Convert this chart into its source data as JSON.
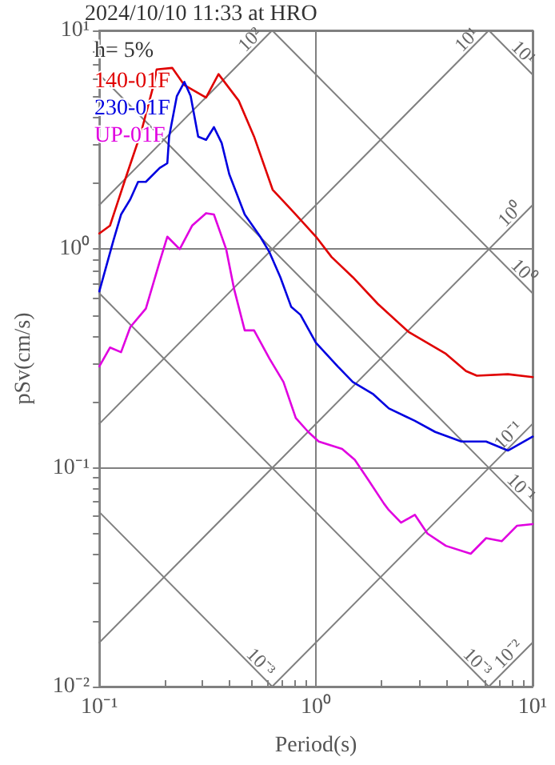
{
  "chart_data": {
    "type": "line",
    "title": "2024/10/10 11:33 at HRO",
    "xlabel": "Period(s)",
    "ylabel": "pSv(cm/s)",
    "log": "xy",
    "grid": true,
    "legend": "top left",
    "xlim": [
      0.1,
      10
    ],
    "ylim": [
      0.01,
      10
    ],
    "xticks": [
      {
        "value": 0.1,
        "label": "10⁻¹"
      },
      {
        "value": 0.2,
        "label": null
      },
      {
        "value": 0.3,
        "label": null
      },
      {
        "value": 0.4,
        "label": null
      },
      {
        "value": 0.5,
        "label": null
      },
      {
        "value": 0.6,
        "label": null
      },
      {
        "value": 0.7,
        "label": null
      },
      {
        "value": 0.8,
        "label": null
      },
      {
        "value": 0.9,
        "label": null
      },
      {
        "value": 1,
        "label": "10⁰"
      },
      {
        "value": 2,
        "label": null
      },
      {
        "value": 3,
        "label": null
      },
      {
        "value": 4,
        "label": null
      },
      {
        "value": 5,
        "label": null
      },
      {
        "value": 6,
        "label": null
      },
      {
        "value": 7,
        "label": null
      },
      {
        "value": 8,
        "label": null
      },
      {
        "value": 9,
        "label": null
      },
      {
        "value": 10,
        "label": "10¹"
      }
    ],
    "yticks": [
      {
        "value": 0.01,
        "label": "10⁻²"
      },
      {
        "value": 0.02,
        "label": null
      },
      {
        "value": 0.03,
        "label": null
      },
      {
        "value": 0.04,
        "label": null
      },
      {
        "value": 0.05,
        "label": null
      },
      {
        "value": 0.06,
        "label": null
      },
      {
        "value": 0.07,
        "label": null
      },
      {
        "value": 0.08,
        "label": null
      },
      {
        "value": 0.09,
        "label": null
      },
      {
        "value": 0.1,
        "label": "10⁻¹"
      },
      {
        "value": 0.2,
        "label": null
      },
      {
        "value": 0.3,
        "label": null
      },
      {
        "value": 0.4,
        "label": null
      },
      {
        "value": 0.5,
        "label": null
      },
      {
        "value": 0.6,
        "label": null
      },
      {
        "value": 0.7,
        "label": null
      },
      {
        "value": 0.8,
        "label": null
      },
      {
        "value": 0.9,
        "label": null
      },
      {
        "value": 1,
        "label": "10⁰"
      },
      {
        "value": 2,
        "label": null
      },
      {
        "value": 3,
        "label": null
      },
      {
        "value": 4,
        "label": null
      },
      {
        "value": 5,
        "label": null
      },
      {
        "value": 6,
        "label": null
      },
      {
        "value": 7,
        "label": null
      },
      {
        "value": 8,
        "label": null
      },
      {
        "value": 9,
        "label": null
      },
      {
        "value": 10,
        "label": "10¹"
      }
    ],
    "annotations": [
      "h= 5%",
      {
        "text": "10²",
        "x": 0.628,
        "y": 10
      },
      {
        "text": "10¹",
        "x": 6.28,
        "y": 10
      },
      {
        "text": "10⁰",
        "x": 10,
        "y": 1.59
      },
      {
        "text": "10⁻¹",
        "x": 10,
        "y": 0.159
      },
      {
        "text": "10⁻²",
        "x": 10,
        "y": 0.0159
      },
      {
        "text": "10¹",
        "x": 10,
        "y": 6.28
      },
      {
        "text": "10⁰",
        "x": 10,
        "y": 0.628
      },
      {
        "text": "10⁻¹",
        "x": 10,
        "y": 0.0628
      },
      {
        "text": "10⁻³",
        "x": 6.28,
        "y": 0.01
      },
      {
        "text": "10⁻³",
        "x": 0.628,
        "y": 0.01
      }
    ],
    "series": [
      {
        "type": "line",
        "color": "#808080",
        "x": [
          0.1,
          0.628
        ],
        "values": [
          1.59,
          10
        ]
      },
      {
        "type": "line",
        "color": "#808080",
        "x": [
          0.1,
          6.28
        ],
        "values": [
          0.159,
          10
        ]
      },
      {
        "type": "line",
        "color": "#808080",
        "x": [
          0.1,
          10
        ],
        "values": [
          0.0159,
          1.59
        ]
      },
      {
        "type": "line",
        "color": "#808080",
        "x": [
          0.628,
          10
        ],
        "values": [
          0.01,
          0.159
        ]
      },
      {
        "type": "line",
        "color": "#808080",
        "x": [
          6.28,
          10
        ],
        "values": [
          0.01,
          0.0159
        ]
      },
      {
        "type": "line",
        "color": "#808080",
        "x": [
          6.28,
          10
        ],
        "values": [
          10,
          6.28
        ]
      },
      {
        "type": "line",
        "color": "#808080",
        "x": [
          0.628,
          10
        ],
        "values": [
          10,
          0.628
        ]
      },
      {
        "type": "line",
        "color": "#808080",
        "x": [
          0.1,
          10
        ],
        "values": [
          6.28,
          0.0628
        ]
      },
      {
        "type": "line",
        "color": "#808080",
        "x": [
          0.1,
          6.28
        ],
        "values": [
          0.628,
          0.01
        ]
      },
      {
        "type": "line",
        "color": "#808080",
        "x": [
          0.1,
          0.628
        ],
        "values": [
          0.0628,
          0.01
        ]
      },
      {
        "name": "140-01F",
        "color": "#e00000",
        "x": [
          0.1,
          0.112,
          0.132,
          0.156,
          0.178,
          0.184,
          0.217,
          0.247,
          0.311,
          0.355,
          0.44,
          0.518,
          0.631,
          0.807,
          1,
          1.18,
          1.48,
          1.93,
          2.68,
          3.98,
          4.93,
          5.53,
          7.69,
          10
        ],
        "values": [
          1.18,
          1.28,
          2.1,
          3.43,
          5.62,
          6.63,
          6.74,
          5.62,
          4.93,
          6.31,
          4.77,
          3.27,
          1.87,
          1.44,
          1.14,
          0.921,
          0.744,
          0.562,
          0.418,
          0.332,
          0.277,
          0.264,
          0.268,
          0.26
        ]
      },
      {
        "name": "230-01F",
        "color": "#0000e0",
        "x": [
          0.1,
          0.116,
          0.126,
          0.139,
          0.151,
          0.164,
          0.19,
          0.206,
          0.21,
          0.228,
          0.247,
          0.264,
          0.286,
          0.311,
          0.338,
          0.367,
          0.398,
          0.469,
          0.553,
          0.61,
          0.685,
          0.769,
          0.848,
          1,
          1.26,
          1.48,
          1.84,
          2.17,
          2.86,
          3.55,
          4.69,
          6.1,
          7.69,
          10
        ],
        "values": [
          0.641,
          1.09,
          1.44,
          1.69,
          2.03,
          2.03,
          2.35,
          2.47,
          3.27,
          5.01,
          5.81,
          5.01,
          3.27,
          3.16,
          3.61,
          3.06,
          2.2,
          1.44,
          1.14,
          0.968,
          0.744,
          0.544,
          0.501,
          0.373,
          0.291,
          0.247,
          0.217,
          0.187,
          0.164,
          0.146,
          0.132,
          0.132,
          0.12,
          0.139
        ]
      },
      {
        "name": "UP-01F",
        "color": "#e000e0",
        "x": [
          0.1,
          0.112,
          0.126,
          0.139,
          0.164,
          0.19,
          0.206,
          0.235,
          0.268,
          0.311,
          0.338,
          0.385,
          0.418,
          0.469,
          0.518,
          0.61,
          0.708,
          0.807,
          0.921,
          1.03,
          1.32,
          1.51,
          1.75,
          2.06,
          2.17,
          2.47,
          2.86,
          3.27,
          3.98,
          5.18,
          6.1,
          7.2,
          8.48,
          10
        ],
        "values": [
          0.291,
          0.355,
          0.338,
          0.44,
          0.535,
          0.877,
          1.14,
          1.0,
          1.28,
          1.46,
          1.44,
          1.0,
          0.663,
          0.425,
          0.425,
          0.316,
          0.247,
          0.169,
          0.146,
          0.132,
          0.122,
          0.109,
          0.0877,
          0.0686,
          0.0641,
          0.0562,
          0.061,
          0.0501,
          0.044,
          0.0405,
          0.0477,
          0.0462,
          0.0544,
          0.0553
        ]
      }
    ]
  }
}
